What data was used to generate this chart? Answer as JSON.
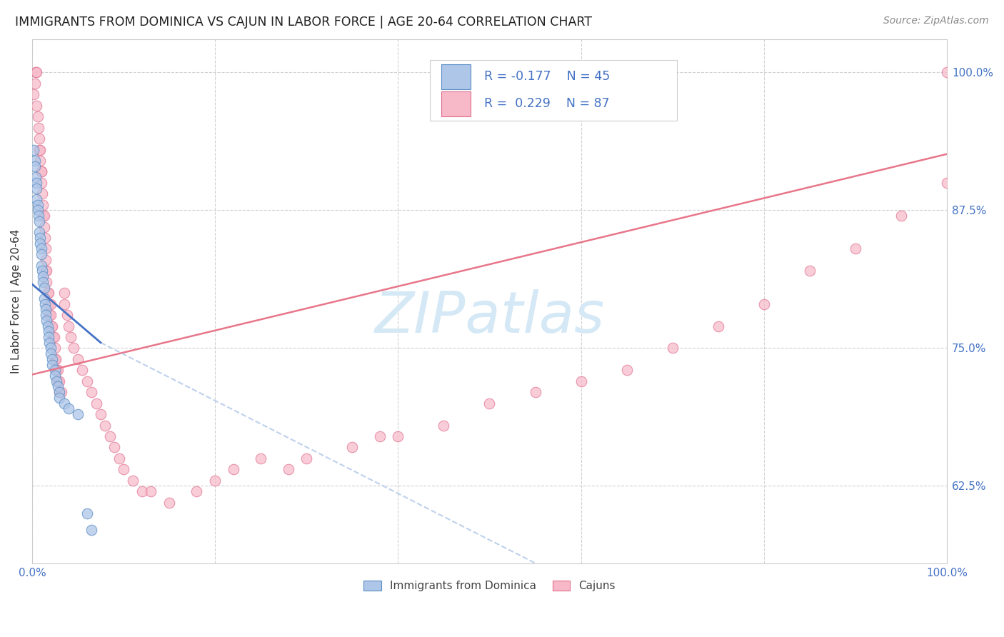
{
  "title": "IMMIGRANTS FROM DOMINICA VS CAJUN IN LABOR FORCE | AGE 20-64 CORRELATION CHART",
  "source": "Source: ZipAtlas.com",
  "ylabel": "In Labor Force | Age 20-64",
  "xlim": [
    0.0,
    1.0
  ],
  "ylim": [
    0.555,
    1.03
  ],
  "ytick_vals": [
    0.625,
    0.75,
    0.875,
    1.0
  ],
  "ytick_labels": [
    "62.5%",
    "75.0%",
    "87.5%",
    "100.0%"
  ],
  "xtick_vals": [
    0.0,
    0.2,
    0.4,
    0.6,
    0.8,
    1.0
  ],
  "xtick_labels": [
    "0.0%",
    "",
    "",
    "",
    "",
    "100.0%"
  ],
  "color_dominica_face": "#aec6e8",
  "color_dominica_edge": "#5b8ec4",
  "color_cajun_face": "#f7b8c8",
  "color_cajun_edge": "#e07090",
  "trendline_dominica_color": "#4472c4",
  "trendline_cajun_color": "#e8768a",
  "trendline_dominica_dashed_color": "#aec6e8",
  "watermark_color": "#d5e8f5",
  "dominica_x": [
    0.002,
    0.003,
    0.003,
    0.004,
    0.005,
    0.005,
    0.005,
    0.006,
    0.006,
    0.007,
    0.008,
    0.008,
    0.009,
    0.009,
    0.01,
    0.01,
    0.01,
    0.011,
    0.012,
    0.012,
    0.013,
    0.013,
    0.014,
    0.015,
    0.015,
    0.016,
    0.017,
    0.018,
    0.018,
    0.019,
    0.02,
    0.02,
    0.022,
    0.022,
    0.025,
    0.025,
    0.027,
    0.028,
    0.03,
    0.03,
    0.035,
    0.04,
    0.05,
    0.06,
    0.065
  ],
  "dominica_y": [
    0.93,
    0.92,
    0.915,
    0.905,
    0.9,
    0.895,
    0.885,
    0.88,
    0.875,
    0.87,
    0.865,
    0.855,
    0.85,
    0.845,
    0.84,
    0.835,
    0.825,
    0.82,
    0.815,
    0.81,
    0.805,
    0.795,
    0.79,
    0.785,
    0.78,
    0.775,
    0.77,
    0.765,
    0.76,
    0.755,
    0.75,
    0.745,
    0.74,
    0.735,
    0.73,
    0.725,
    0.72,
    0.715,
    0.71,
    0.705,
    0.7,
    0.695,
    0.69,
    0.6,
    0.585
  ],
  "cajun_x": [
    0.002,
    0.003,
    0.004,
    0.005,
    0.005,
    0.006,
    0.007,
    0.008,
    0.008,
    0.009,
    0.009,
    0.01,
    0.01,
    0.01,
    0.011,
    0.012,
    0.012,
    0.013,
    0.013,
    0.014,
    0.015,
    0.015,
    0.015,
    0.016,
    0.016,
    0.017,
    0.018,
    0.018,
    0.019,
    0.02,
    0.02,
    0.021,
    0.022,
    0.023,
    0.024,
    0.025,
    0.025,
    0.026,
    0.027,
    0.028,
    0.028,
    0.03,
    0.03,
    0.032,
    0.035,
    0.035,
    0.038,
    0.04,
    0.042,
    0.045,
    0.05,
    0.055,
    0.06,
    0.065,
    0.07,
    0.075,
    0.08,
    0.085,
    0.09,
    0.095,
    0.1,
    0.11,
    0.12,
    0.13,
    0.15,
    0.18,
    0.2,
    0.22,
    0.25,
    0.28,
    0.3,
    0.35,
    0.38,
    0.4,
    0.45,
    0.5,
    0.55,
    0.6,
    0.65,
    0.7,
    0.75,
    0.8,
    0.85,
    0.9,
    0.95,
    1.0,
    1.0
  ],
  "cajun_y": [
    0.98,
    0.99,
    1.0,
    0.97,
    1.0,
    0.96,
    0.95,
    0.94,
    0.93,
    0.92,
    0.93,
    0.91,
    0.9,
    0.91,
    0.89,
    0.88,
    0.87,
    0.87,
    0.86,
    0.85,
    0.84,
    0.83,
    0.82,
    0.82,
    0.81,
    0.8,
    0.8,
    0.79,
    0.78,
    0.78,
    0.79,
    0.77,
    0.77,
    0.76,
    0.76,
    0.75,
    0.74,
    0.74,
    0.73,
    0.73,
    0.72,
    0.72,
    0.71,
    0.71,
    0.8,
    0.79,
    0.78,
    0.77,
    0.76,
    0.75,
    0.74,
    0.73,
    0.72,
    0.71,
    0.7,
    0.69,
    0.68,
    0.67,
    0.66,
    0.65,
    0.64,
    0.63,
    0.62,
    0.62,
    0.61,
    0.62,
    0.63,
    0.64,
    0.65,
    0.64,
    0.65,
    0.66,
    0.67,
    0.67,
    0.68,
    0.7,
    0.71,
    0.72,
    0.73,
    0.75,
    0.77,
    0.79,
    0.82,
    0.84,
    0.87,
    0.9,
    1.0
  ],
  "cajun_trend_x0": 0.0,
  "cajun_trend_y0": 0.726,
  "cajun_trend_x1": 1.0,
  "cajun_trend_y1": 0.926,
  "dominica_trend_solid_x0": 0.0,
  "dominica_trend_solid_y0": 0.808,
  "dominica_trend_solid_x1": 0.075,
  "dominica_trend_solid_y1": 0.755,
  "dominica_trend_dash_x0": 0.075,
  "dominica_trend_dash_y0": 0.755,
  "dominica_trend_dash_x1": 0.55,
  "dominica_trend_dash_y1": 0.555
}
